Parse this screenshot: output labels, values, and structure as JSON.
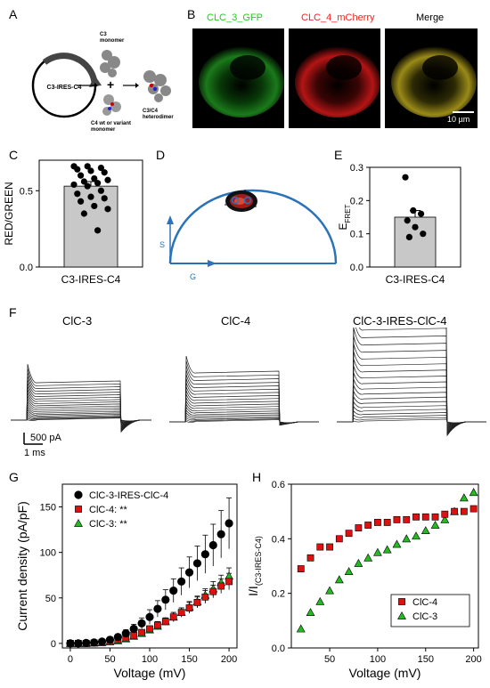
{
  "panels": {
    "A": {
      "label": "A",
      "plasmid": "C3-IRES-C4",
      "c3_monomer": [
        "C3",
        "monomer"
      ],
      "c4_monomer": [
        "C4 wt or variant",
        "monomer"
      ],
      "heterodimer": [
        "C3/C4",
        "heterodimer"
      ],
      "plus": "+"
    },
    "B": {
      "label": "B",
      "titles": [
        "CLC_3_GFP",
        "CLC_4_mCherry",
        "Merge"
      ],
      "colors": [
        "#22cc22",
        "#ee2222",
        "#000000"
      ],
      "scalebar": "10 µm"
    },
    "C": {
      "label": "C"
    },
    "D": {
      "label": "D",
      "axis_s": "S",
      "axis_g": "G"
    },
    "E": {
      "label": "E"
    },
    "F": {
      "label": "F",
      "titles": [
        "ClC-3",
        "ClC-4",
        "ClC-3-IRES-ClC-4"
      ],
      "scale_current": "500 pA",
      "scale_time": "1 ms"
    },
    "G": {
      "label": "G"
    },
    "H": {
      "label": "H"
    }
  },
  "chart_data": [
    {
      "id": "C",
      "type": "bar",
      "categories": [
        "C3-IRES-C4"
      ],
      "values": [
        0.53
      ],
      "points": [
        0.66,
        0.66,
        0.65,
        0.64,
        0.63,
        0.62,
        0.6,
        0.58,
        0.57,
        0.56,
        0.55,
        0.54,
        0.53,
        0.5,
        0.48,
        0.46,
        0.45,
        0.43,
        0.4,
        0.38,
        0.35,
        0.24
      ],
      "sem": 0.03,
      "ylabel": "RED/GREEN",
      "ylim": [
        0,
        0.7
      ],
      "yticks": [
        "0.0",
        "0.5"
      ]
    },
    {
      "id": "E",
      "type": "bar",
      "categories": [
        "C3-IRES-C4"
      ],
      "values": [
        0.15
      ],
      "points": [
        0.27,
        0.17,
        0.16,
        0.14,
        0.12,
        0.1,
        0.09
      ],
      "sem": 0.02,
      "ylabel": "E",
      "ylabel_sub": "FRET",
      "ylim": [
        0,
        0.3
      ],
      "yticks": [
        "0.0",
        "0.1",
        "0.2",
        "0.3"
      ]
    },
    {
      "id": "G",
      "type": "scatter",
      "xlabel": "Voltage (mV)",
      "ylabel": "Current density (pA/pF)",
      "xlim": [
        -10,
        210
      ],
      "ylim": [
        -5,
        175
      ],
      "xticks": [
        "0",
        "50",
        "100",
        "150",
        "200"
      ],
      "yticks": [
        "0",
        "50",
        "100",
        "150"
      ],
      "x": [
        0,
        10,
        20,
        30,
        40,
        50,
        60,
        70,
        80,
        90,
        100,
        110,
        120,
        130,
        140,
        150,
        160,
        170,
        180,
        190,
        200
      ],
      "series": [
        {
          "name": "ClC-3-IRES-ClC-4",
          "color": "#000000",
          "marker": "circle",
          "values": [
            0,
            0,
            0.5,
            1,
            2,
            4,
            7,
            11,
            16,
            22,
            29,
            38,
            48,
            58,
            68,
            78,
            88,
            98,
            108,
            120,
            132
          ],
          "err": [
            0,
            0,
            0.5,
            1,
            1,
            2,
            3,
            4,
            5,
            6,
            8,
            9,
            11,
            13,
            15,
            17,
            19,
            21,
            23,
            26,
            28
          ]
        },
        {
          "name": "ClC-4: **",
          "color": "#dd1111",
          "marker": "square",
          "values": [
            0,
            0,
            0,
            0.5,
            1,
            2,
            4,
            6,
            9,
            12,
            16,
            20,
            24,
            29,
            34,
            39,
            45,
            51,
            57,
            63,
            68
          ],
          "err": [
            0,
            0,
            0,
            0.5,
            0.5,
            1,
            1,
            2,
            2,
            3,
            3,
            4,
            4,
            5,
            5,
            6,
            6,
            7,
            7,
            8,
            9
          ]
        },
        {
          "name": "ClC-3: **",
          "color": "#22bb22",
          "marker": "triangle",
          "values": [
            0,
            0,
            0,
            0.5,
            1,
            2,
            3,
            5,
            8,
            11,
            15,
            19,
            24,
            29,
            34,
            40,
            46,
            53,
            60,
            67,
            74
          ],
          "err": [
            0,
            0,
            0,
            0.5,
            0.5,
            1,
            1,
            2,
            2,
            3,
            3,
            4,
            4,
            5,
            5,
            6,
            6,
            7,
            8,
            8,
            9
          ]
        }
      ],
      "legend": "top-left"
    },
    {
      "id": "H",
      "type": "scatter",
      "xlabel": "Voltage (mV)",
      "ylabel": "I/I",
      "ylabel_sub": "(C3-IRES-C4)",
      "xlim": [
        10,
        205
      ],
      "ylim": [
        0,
        0.6
      ],
      "xticks": [
        "50",
        "100",
        "150",
        "200"
      ],
      "yticks": [
        "0.0",
        "0.2",
        "0.4",
        "0.6"
      ],
      "x": [
        20,
        30,
        40,
        50,
        60,
        70,
        80,
        90,
        100,
        110,
        120,
        130,
        140,
        150,
        160,
        170,
        180,
        190,
        200
      ],
      "series": [
        {
          "name": "ClC-4",
          "color": "#dd1111",
          "marker": "square",
          "values": [
            0.29,
            0.33,
            0.37,
            0.37,
            0.4,
            0.42,
            0.44,
            0.45,
            0.46,
            0.46,
            0.47,
            0.47,
            0.48,
            0.48,
            0.48,
            0.49,
            0.5,
            0.5,
            0.51
          ]
        },
        {
          "name": "ClC-3",
          "color": "#22bb22",
          "marker": "triangle",
          "values": [
            0.07,
            0.13,
            0.17,
            0.21,
            0.25,
            0.28,
            0.31,
            0.33,
            0.35,
            0.36,
            0.38,
            0.4,
            0.41,
            0.43,
            0.45,
            0.47,
            0.5,
            0.55,
            0.57
          ]
        }
      ],
      "legend": "bottom-right"
    }
  ]
}
